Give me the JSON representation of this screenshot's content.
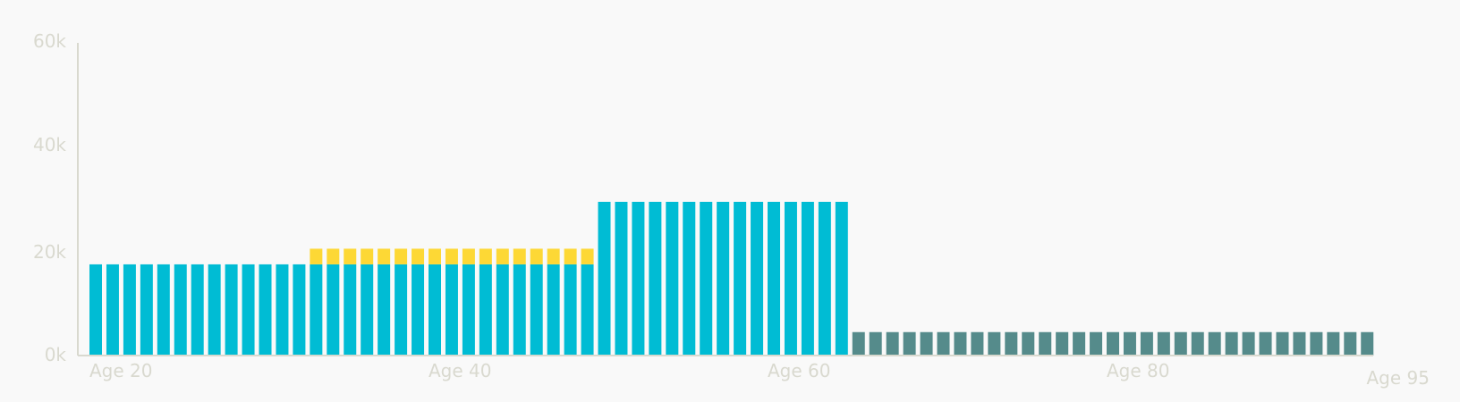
{
  "chart_data": {
    "type": "bar",
    "stacked": true,
    "x": [
      20,
      21,
      22,
      23,
      24,
      25,
      26,
      27,
      28,
      29,
      30,
      31,
      32,
      33,
      34,
      35,
      36,
      37,
      38,
      39,
      40,
      41,
      42,
      43,
      44,
      45,
      46,
      47,
      48,
      49,
      50,
      51,
      52,
      53,
      54,
      55,
      56,
      57,
      58,
      59,
      60,
      61,
      62,
      63,
      64,
      65,
      66,
      67,
      68,
      69,
      70,
      71,
      72,
      73,
      74,
      75,
      76,
      77,
      78,
      79,
      80,
      81,
      82,
      83,
      84,
      85,
      86,
      87,
      88,
      89,
      90,
      91,
      92,
      93,
      94,
      95
    ],
    "series": [
      {
        "color": "#00bcd4",
        "values": [
          17500,
          17500,
          17500,
          17500,
          17500,
          17500,
          17500,
          17500,
          17500,
          17500,
          17500,
          17500,
          17500,
          17500,
          17500,
          17500,
          17500,
          17500,
          17500,
          17500,
          17500,
          17500,
          17500,
          17500,
          17500,
          17500,
          17500,
          17500,
          17500,
          17500,
          29500,
          29500,
          29500,
          29500,
          29500,
          29500,
          29500,
          29500,
          29500,
          29500,
          29500,
          29500,
          29500,
          29500,
          29500,
          0,
          0,
          0,
          0,
          0,
          0,
          0,
          0,
          0,
          0,
          0,
          0,
          0,
          0,
          0,
          0,
          0,
          0,
          0,
          0,
          0,
          0,
          0,
          0,
          0,
          0,
          0,
          0,
          0,
          0,
          0
        ]
      },
      {
        "color": "#fdd835",
        "values": [
          0,
          0,
          0,
          0,
          0,
          0,
          0,
          0,
          0,
          0,
          0,
          0,
          0,
          3000,
          3000,
          3000,
          3000,
          3000,
          3000,
          3000,
          3000,
          3000,
          3000,
          3000,
          3000,
          3000,
          3000,
          3000,
          3000,
          3000,
          0,
          0,
          0,
          0,
          0,
          0,
          0,
          0,
          0,
          0,
          0,
          0,
          0,
          0,
          0,
          0,
          0,
          0,
          0,
          0,
          0,
          0,
          0,
          0,
          0,
          0,
          0,
          0,
          0,
          0,
          0,
          0,
          0,
          0,
          0,
          0,
          0,
          0,
          0,
          0,
          0,
          0,
          0,
          0,
          0,
          0
        ]
      },
      {
        "color": "#558b8b",
        "values": [
          0,
          0,
          0,
          0,
          0,
          0,
          0,
          0,
          0,
          0,
          0,
          0,
          0,
          0,
          0,
          0,
          0,
          0,
          0,
          0,
          0,
          0,
          0,
          0,
          0,
          0,
          0,
          0,
          0,
          0,
          0,
          0,
          0,
          0,
          0,
          0,
          0,
          0,
          0,
          0,
          0,
          0,
          0,
          0,
          0,
          4500,
          4500,
          4500,
          4500,
          4500,
          4500,
          4500,
          4500,
          4500,
          4500,
          4500,
          4500,
          4500,
          4500,
          4500,
          4500,
          4500,
          4500,
          4500,
          4500,
          4500,
          4500,
          4500,
          4500,
          4500,
          4500,
          4500,
          4500,
          4500,
          4500,
          4500
        ]
      }
    ],
    "y_ticks": [
      "0k",
      "20k",
      "40k",
      "60k"
    ],
    "x_ticks": [
      "Age 20",
      "Age 40",
      "Age 60",
      "Age 80",
      "Age 95"
    ],
    "ylim": [
      0,
      60000
    ],
    "grid": false
  }
}
